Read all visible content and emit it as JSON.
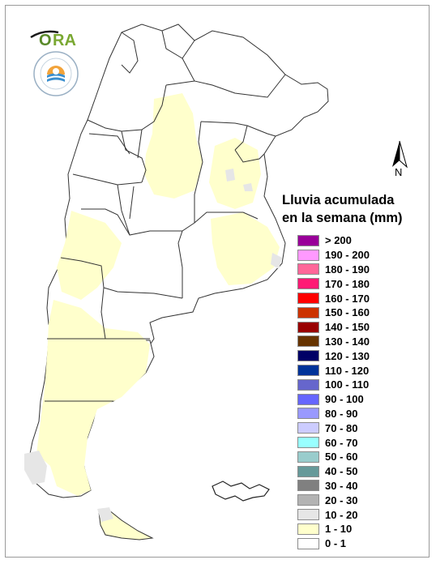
{
  "map": {
    "legend_title_line1": "Lluvia acumulada",
    "legend_title_line2": "en la semana (mm)",
    "north_label": "N",
    "logo_brand": "ORA",
    "logo_seal_text": "SERVICIO METEOROLÓGICO NACIONAL ARGENTINA",
    "legend": [
      {
        "label": "> 200",
        "color": "#990099"
      },
      {
        "label": "190 - 200",
        "color": "#ff99ff"
      },
      {
        "label": "180 - 190",
        "color": "#ff6699"
      },
      {
        "label": "170 - 180",
        "color": "#ff1a75"
      },
      {
        "label": "160 - 170",
        "color": "#ff0000"
      },
      {
        "label": "150 - 160",
        "color": "#cc3300"
      },
      {
        "label": "140 - 150",
        "color": "#990000"
      },
      {
        "label": "130 - 140",
        "color": "#663300"
      },
      {
        "label": "120 - 130",
        "color": "#000066"
      },
      {
        "label": "110 - 120",
        "color": "#003399"
      },
      {
        "label": "100 - 110",
        "color": "#6666cc"
      },
      {
        "label": "90 - 100",
        "color": "#6666ff"
      },
      {
        "label": "80 - 90",
        "color": "#9999ff"
      },
      {
        "label": "70 - 80",
        "color": "#ccccff"
      },
      {
        "label": "60 - 70",
        "color": "#99ffff"
      },
      {
        "label": "50 - 60",
        "color": "#99cccc"
      },
      {
        "label": "40 - 50",
        "color": "#669999"
      },
      {
        "label": "30 - 40",
        "color": "#808080"
      },
      {
        "label": "20 - 30",
        "color": "#b3b3b3"
      },
      {
        "label": "10 - 20",
        "color": "#e6e6e6"
      },
      {
        "label": "1 - 10",
        "color": "#ffffcc"
      },
      {
        "label": "0 - 1",
        "color": "#ffffff"
      }
    ]
  }
}
